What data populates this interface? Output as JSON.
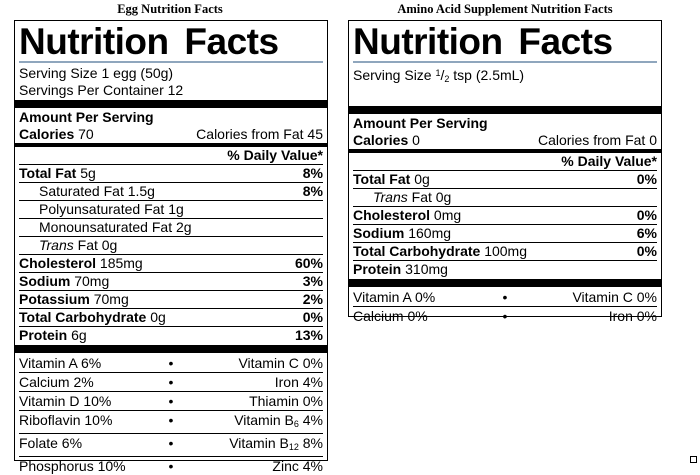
{
  "egg": {
    "caption": "Egg Nutrition Facts",
    "title": "Nutrition Facts",
    "serving_size": "Serving Size 1 egg (50g)",
    "servings_per_container": "Servings Per Container 12",
    "amount_per_serving": "Amount Per Serving",
    "calories_label": "Calories",
    "calories_value": "70",
    "calories_from_fat": "Calories from Fat 45",
    "daily_value_header": "% Daily Value*",
    "nutrients": [
      {
        "label": "Total Fat",
        "amount": "5g",
        "dv": "8%"
      },
      {
        "label": "Saturated Fat",
        "amount": "1.5g",
        "dv": "8%"
      },
      {
        "label": "Polyunsaturated Fat",
        "amount": "1g",
        "dv": ""
      },
      {
        "label": "Monounsaturated Fat",
        "amount": "2g",
        "dv": ""
      },
      {
        "label": "Trans",
        "amount": "Fat 0g",
        "dv": ""
      },
      {
        "label": "Cholesterol",
        "amount": "185mg",
        "dv": "60%"
      },
      {
        "label": "Sodium",
        "amount": "70mg",
        "dv": "3%"
      },
      {
        "label": "Potassium",
        "amount": "70mg",
        "dv": "2%"
      },
      {
        "label": "Total Carbohydrate",
        "amount": "0g",
        "dv": "0%"
      },
      {
        "label": "Protein",
        "amount": "6g",
        "dv": "13%"
      }
    ],
    "vitamins": [
      {
        "left": "Vitamin A 6%",
        "right": "Vitamin C 0%"
      },
      {
        "left": "Calcium 2%",
        "right": "Iron 4%"
      },
      {
        "left": "Vitamin D 10%",
        "right": "Thiamin 0%"
      },
      {
        "left": "Riboflavin 10%",
        "right_pre": "Vitamin B",
        "right_sub": "6",
        "right_post": " 4%"
      },
      {
        "left": "Folate 6%",
        "right_pre": "Vitamin B",
        "right_sub": "12",
        "right_post": " 8%"
      },
      {
        "left": "Phosphorus 10%",
        "right": "Zinc 4%"
      }
    ],
    "bullet": "•"
  },
  "amino": {
    "caption": "Amino Acid Supplement Nutrition Facts",
    "title": "Nutrition Facts",
    "serving_size_pre": "Serving Size ",
    "serving_size_num": "1",
    "serving_size_slash": "/",
    "serving_size_den": "2",
    "serving_size_post": " tsp (2.5mL)",
    "amount_per_serving": "Amount Per Serving",
    "calories_label": "Calories",
    "calories_value": "0",
    "calories_from_fat": "Calories from Fat 0",
    "daily_value_header": "% Daily Value*",
    "nutrients": [
      {
        "label": "Total Fat",
        "amount": "0g",
        "dv": "0%"
      },
      {
        "label": "Trans",
        "amount": "Fat 0g",
        "dv": ""
      },
      {
        "label": "Cholesterol",
        "amount": "0mg",
        "dv": "0%"
      },
      {
        "label": "Sodium",
        "amount": "160mg",
        "dv": "6%"
      },
      {
        "label": "Total Carbohydrate",
        "amount": "100mg",
        "dv": "0%"
      },
      {
        "label": "Protein",
        "amount": "310mg",
        "dv": ""
      }
    ],
    "vitamins": [
      {
        "left": "Vitamin A 0%",
        "right": "Vitamin C 0%"
      },
      {
        "left": "Calcium 0%",
        "right": "Iron 0%"
      }
    ],
    "bullet": "•"
  }
}
